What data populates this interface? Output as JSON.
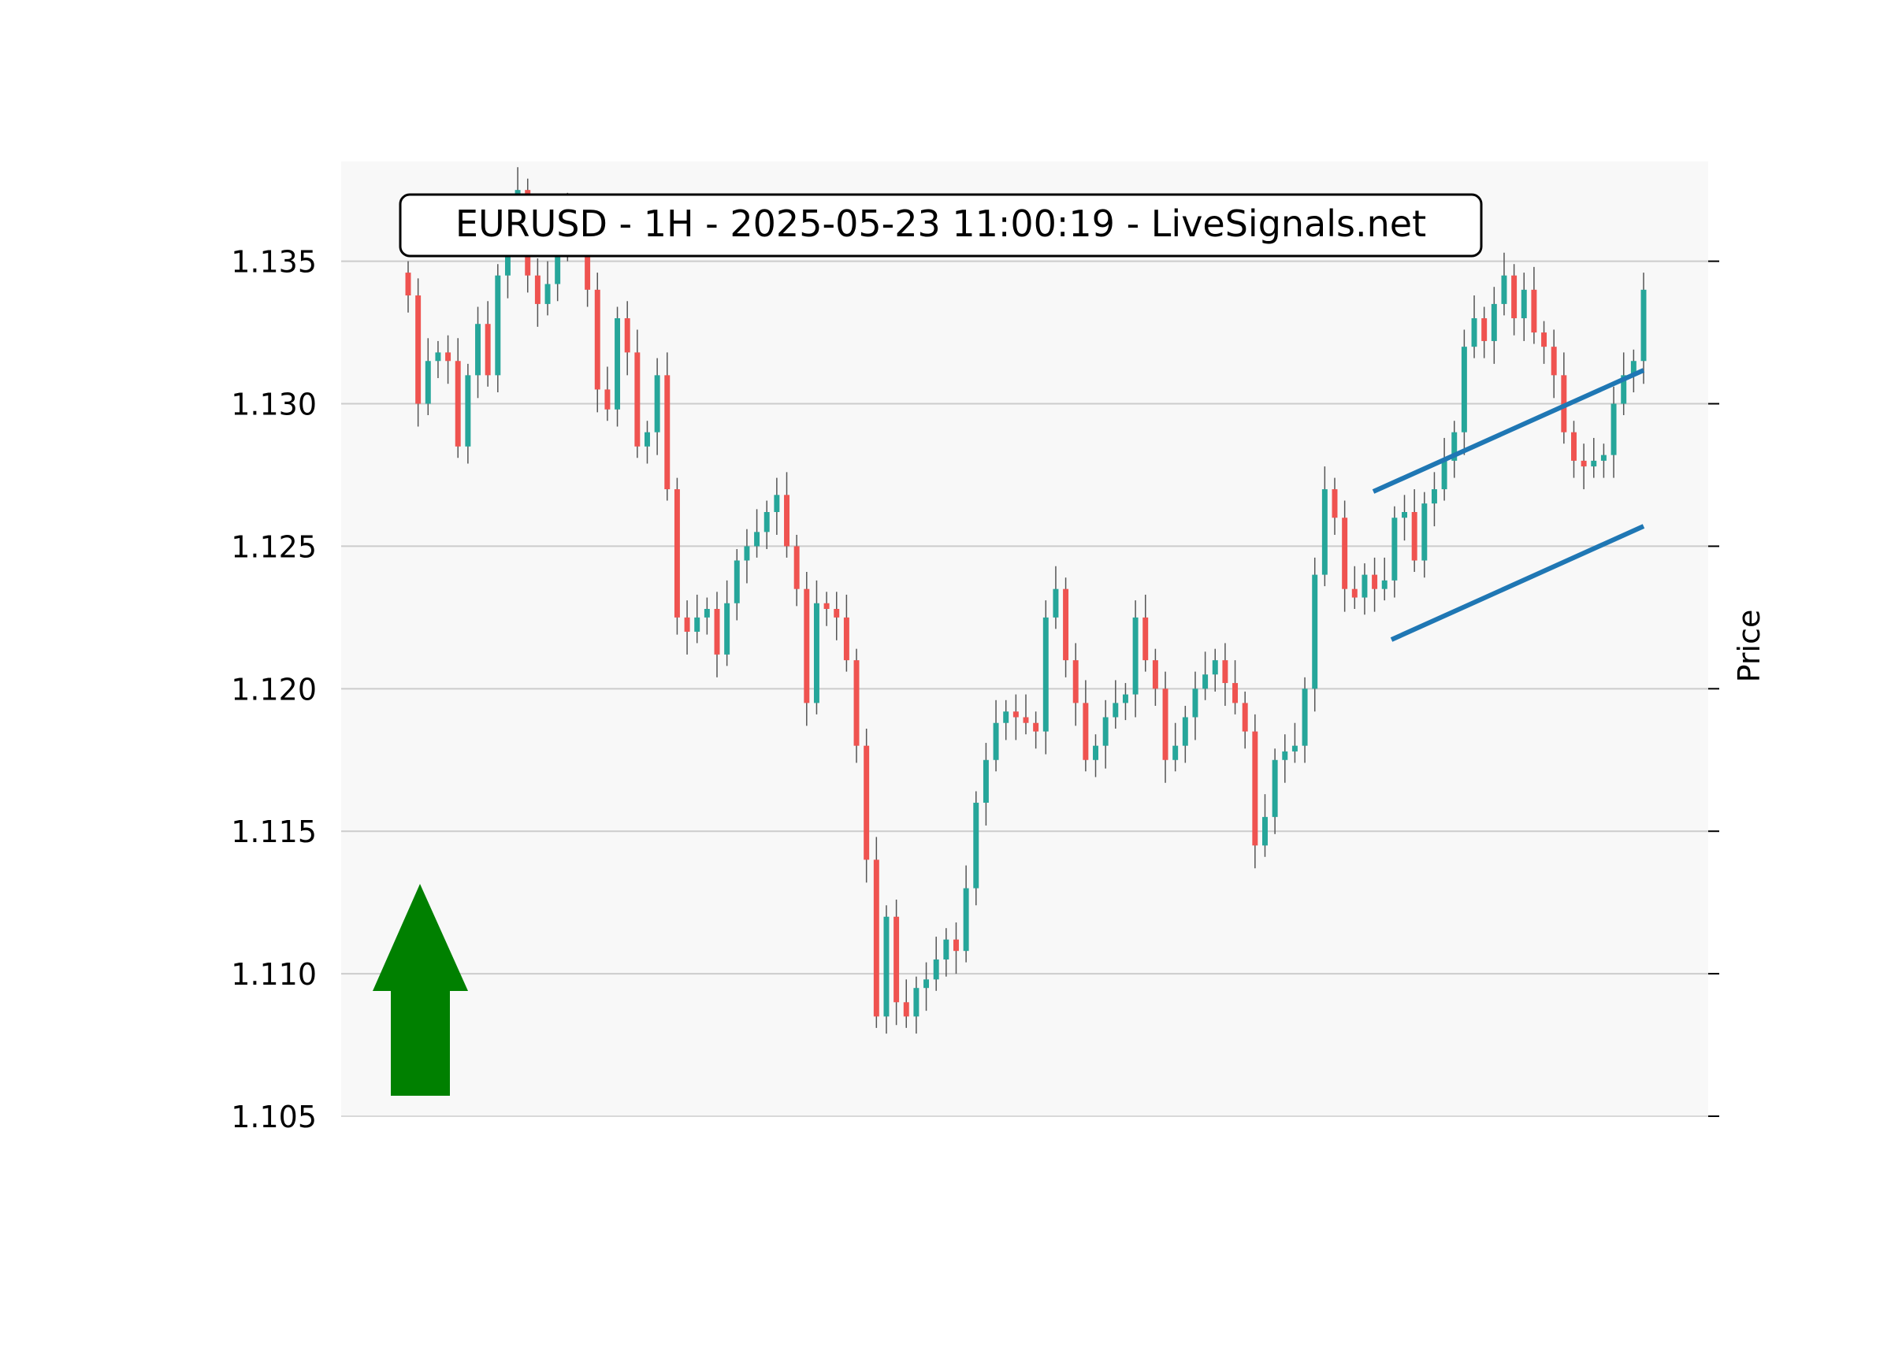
{
  "chart_data": {
    "type": "candlestick",
    "title": "EURUSD - 1H - 2025-05-23 11:00:19 - LiveSignals.net",
    "ylabel": "Price",
    "xlabel": "",
    "ylim": [
      1.105,
      1.1385
    ],
    "y_ticks": [
      "1.105",
      "1.110",
      "1.115",
      "1.120",
      "1.125",
      "1.130",
      "1.135"
    ],
    "y_tick_values": [
      1.105,
      1.11,
      1.115,
      1.12,
      1.125,
      1.13,
      1.135
    ],
    "grid": true,
    "up_color": "#26a69a",
    "down_color": "#ef5350",
    "closes": [
      1.1338,
      1.13,
      1.1315,
      1.1318,
      1.1315,
      1.1285,
      1.131,
      1.1328,
      1.131,
      1.1345,
      1.1365,
      1.1375,
      1.1345,
      1.1335,
      1.1342,
      1.1368,
      1.1358,
      1.136,
      1.134,
      1.1305,
      1.1298,
      1.133,
      1.1318,
      1.1285,
      1.129,
      1.131,
      1.127,
      1.1225,
      1.122,
      1.1225,
      1.1228,
      1.1212,
      1.123,
      1.1245,
      1.125,
      1.1255,
      1.1262,
      1.1268,
      1.125,
      1.1235,
      1.1195,
      1.123,
      1.1228,
      1.1225,
      1.121,
      1.118,
      1.114,
      1.1085,
      1.112,
      1.109,
      1.1085,
      1.1095,
      1.1098,
      1.1105,
      1.1112,
      1.1108,
      1.113,
      1.116,
      1.1175,
      1.1188,
      1.1192,
      1.119,
      1.1188,
      1.1185,
      1.1225,
      1.1235,
      1.121,
      1.1195,
      1.1175,
      1.118,
      1.119,
      1.1195,
      1.1198,
      1.1225,
      1.121,
      1.12,
      1.1175,
      1.118,
      1.119,
      1.12,
      1.1205,
      1.121,
      1.1202,
      1.1195,
      1.1185,
      1.1145,
      1.1155,
      1.1175,
      1.1178,
      1.118,
      1.12,
      1.124,
      1.127,
      1.126,
      1.1235,
      1.1232,
      1.124,
      1.1235,
      1.1238,
      1.126,
      1.1262,
      1.1245,
      1.1265,
      1.127,
      1.128,
      1.129,
      1.132,
      1.133,
      1.1322,
      1.1335,
      1.1345,
      1.133,
      1.134,
      1.1325,
      1.132,
      1.131,
      1.129,
      1.128,
      1.1278,
      1.128,
      1.1282,
      1.13,
      1.131,
      1.1315,
      1.134
    ]
  }
}
